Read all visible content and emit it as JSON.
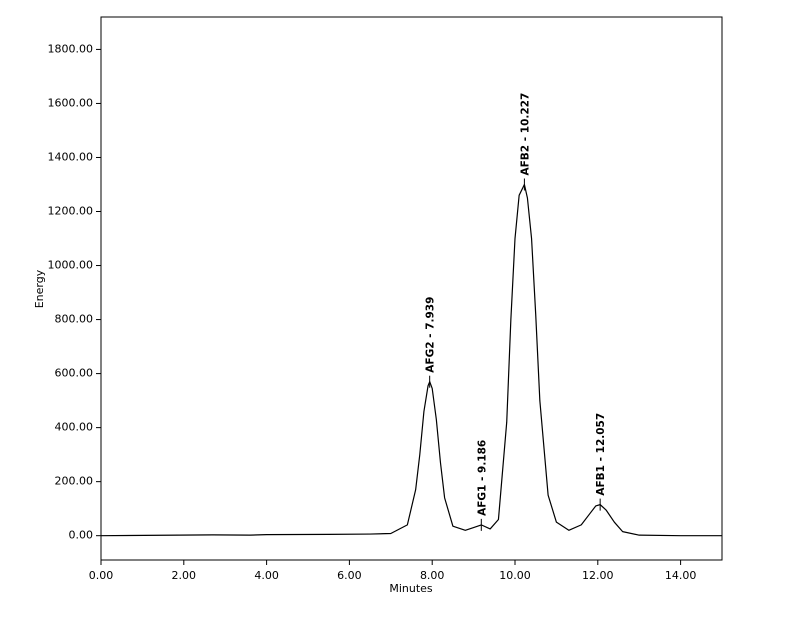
{
  "chart_data": {
    "type": "line",
    "xlabel": "Minutes",
    "ylabel": "Energy",
    "x": [
      0,
      2.7,
      3.6,
      4.0,
      5.5,
      6.5,
      7.0,
      7.4,
      7.6,
      7.7,
      7.8,
      7.9,
      7.94,
      8.0,
      8.1,
      8.2,
      8.3,
      8.5,
      8.8,
      9.0,
      9.186,
      9.4,
      9.6,
      9.8,
      9.9,
      10.0,
      10.1,
      10.227,
      10.3,
      10.4,
      10.5,
      10.6,
      10.8,
      11.0,
      11.3,
      11.6,
      11.8,
      11.95,
      12.057,
      12.2,
      12.4,
      12.6,
      13.0,
      14.0,
      15.0
    ],
    "values": [
      0,
      3,
      2,
      4,
      5,
      6,
      8,
      40,
      170,
      300,
      460,
      555,
      570,
      545,
      430,
      270,
      140,
      35,
      20,
      30,
      40,
      25,
      60,
      420,
      800,
      1100,
      1260,
      1300,
      1250,
      1100,
      820,
      500,
      150,
      50,
      20,
      40,
      80,
      110,
      115,
      95,
      50,
      15,
      2,
      0,
      0
    ],
    "color": "#000000",
    "xlim": [
      0,
      15
    ],
    "ylim": [
      -90,
      1920
    ],
    "xticks": [
      {
        "value": 0,
        "label": "0.00"
      },
      {
        "value": 2,
        "label": "2.00"
      },
      {
        "value": 4,
        "label": "4.00"
      },
      {
        "value": 6,
        "label": "6.00"
      },
      {
        "value": 8,
        "label": "8.00"
      },
      {
        "value": 10,
        "label": "10.00"
      },
      {
        "value": 12,
        "label": "12.00"
      },
      {
        "value": 14,
        "label": "14.00"
      }
    ],
    "yticks": [
      {
        "value": 0,
        "label": "0.00"
      },
      {
        "value": 200,
        "label": "200.00"
      },
      {
        "value": 400,
        "label": "400.00"
      },
      {
        "value": 600,
        "label": "600.00"
      },
      {
        "value": 800,
        "label": "800.00"
      },
      {
        "value": 1000,
        "label": "1000.00"
      },
      {
        "value": 1200,
        "label": "1200.00"
      },
      {
        "value": 1400,
        "label": "1400.00"
      },
      {
        "value": 1600,
        "label": "1600.00"
      },
      {
        "value": 1800,
        "label": "1800.00"
      }
    ],
    "annotations": [
      {
        "text": "AFG2 - 7.939",
        "x": 7.939,
        "y": 570
      },
      {
        "text": "AFG1 - 9.186",
        "x": 9.186,
        "y": 40
      },
      {
        "text": "AFB2 - 10.227",
        "x": 10.227,
        "y": 1300
      },
      {
        "text": "AFB1 - 12.057",
        "x": 12.057,
        "y": 115
      }
    ]
  }
}
